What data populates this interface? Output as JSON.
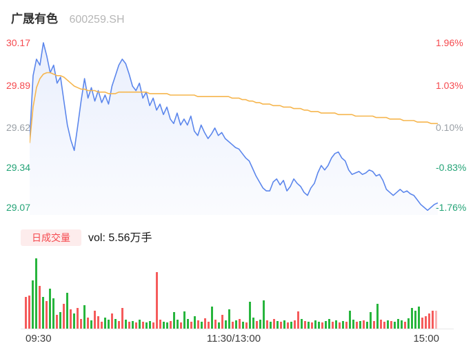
{
  "header": {
    "name": "广晟有色",
    "code": "600259.SH"
  },
  "axes": {
    "left": [
      "30.17",
      "29.89",
      "29.62",
      "29.34",
      "29.07"
    ],
    "right": [
      "1.96%",
      "1.03%",
      "0.10%",
      "-0.83%",
      "-1.76%"
    ],
    "time": [
      "09:30",
      "11:30/13:00",
      "15:00"
    ]
  },
  "volume_legend": {
    "badge": "日成交量",
    "text": "vol: 5.56万手"
  },
  "colors": {
    "up": "#f5494e",
    "down": "#23a376",
    "neutral": "#9aa0a6",
    "price_line": "#5b86ec",
    "avg_line": "#f6b54c",
    "vol_up": "#f55b5b",
    "vol_down": "#27b53d",
    "vol_last_pale": "rgba(245,91,91,0.45)",
    "badge_bg": "#fdecec"
  },
  "chart_data": {
    "type": "line",
    "title": "广晟有色 600259.SH",
    "x_axis": {
      "labels": [
        "09:30",
        "11:30/13:00",
        "15:00"
      ],
      "trading_minutes": 240
    },
    "y_axis": {
      "price_ticks": [
        30.17,
        29.89,
        29.62,
        29.34,
        29.07
      ],
      "pct_ticks": [
        "1.96%",
        "1.03%",
        "0.10%",
        "-0.83%",
        "-1.76%"
      ],
      "range": [
        29.07,
        30.17
      ]
    },
    "prev_close": 29.59,
    "grid": false,
    "legend_position": "none",
    "series": [
      {
        "name": "price",
        "values": [
          29.52,
          29.95,
          30.06,
          30.02,
          30.17,
          30.08,
          29.97,
          30.02,
          29.9,
          29.94,
          29.78,
          29.62,
          29.52,
          29.45,
          29.61,
          29.78,
          29.93,
          29.8,
          29.87,
          29.78,
          29.85,
          29.77,
          29.82,
          29.76,
          29.88,
          29.95,
          30.02,
          30.06,
          30.03,
          29.96,
          29.88,
          29.85,
          29.9,
          29.8,
          29.84,
          29.75,
          29.8,
          29.72,
          29.76,
          29.69,
          29.74,
          29.66,
          29.63,
          29.7,
          29.62,
          29.66,
          29.62,
          29.68,
          29.58,
          29.55,
          29.62,
          29.57,
          29.53,
          29.56,
          29.6,
          29.55,
          29.57,
          29.53,
          29.51,
          29.49,
          29.47,
          29.46,
          29.43,
          29.4,
          29.38,
          29.33,
          29.28,
          29.24,
          29.2,
          29.18,
          29.18,
          29.24,
          29.26,
          29.22,
          29.25,
          29.18,
          29.21,
          29.26,
          29.23,
          29.21,
          29.17,
          29.15,
          29.2,
          29.23,
          29.3,
          29.35,
          29.32,
          29.35,
          29.4,
          29.43,
          29.44,
          29.4,
          29.38,
          29.32,
          29.29,
          29.3,
          29.31,
          29.29,
          29.3,
          29.32,
          29.31,
          29.28,
          29.29,
          29.25,
          29.19,
          29.17,
          29.15,
          29.17,
          29.19,
          29.17,
          29.18,
          29.16,
          29.15,
          29.12,
          29.09,
          29.07,
          29.05,
          29.07,
          29.09,
          29.1
        ]
      },
      {
        "name": "avg_price",
        "values": [
          29.5,
          29.74,
          29.87,
          29.93,
          29.96,
          29.97,
          29.97,
          29.96,
          29.95,
          29.95,
          29.94,
          29.92,
          29.9,
          29.88,
          29.87,
          29.86,
          29.86,
          29.85,
          29.85,
          29.85,
          29.84,
          29.84,
          29.84,
          29.83,
          29.83,
          29.83,
          29.84,
          29.84,
          29.84,
          29.84,
          29.84,
          29.84,
          29.84,
          29.84,
          29.84,
          29.83,
          29.83,
          29.83,
          29.83,
          29.83,
          29.83,
          29.82,
          29.82,
          29.82,
          29.82,
          29.82,
          29.82,
          29.82,
          29.82,
          29.81,
          29.81,
          29.81,
          29.81,
          29.81,
          29.81,
          29.81,
          29.81,
          29.81,
          29.81,
          29.8,
          29.8,
          29.8,
          29.79,
          29.79,
          29.78,
          29.78,
          29.77,
          29.77,
          29.76,
          29.76,
          29.76,
          29.75,
          29.75,
          29.75,
          29.74,
          29.74,
          29.74,
          29.73,
          29.73,
          29.73,
          29.72,
          29.72,
          29.71,
          29.71,
          29.71,
          29.7,
          29.7,
          29.7,
          29.7,
          29.7,
          29.69,
          29.69,
          29.69,
          29.69,
          29.69,
          29.68,
          29.68,
          29.68,
          29.68,
          29.68,
          29.68,
          29.67,
          29.67,
          29.67,
          29.67,
          29.66,
          29.66,
          29.66,
          29.66,
          29.65,
          29.65,
          29.65,
          29.65,
          29.64,
          29.64,
          29.64,
          29.64,
          29.63,
          29.63,
          29.63
        ]
      }
    ],
    "volume": {
      "unit": "万手",
      "total_label": "5.56",
      "values_rel": [
        46,
        48,
        70,
        102,
        62,
        46,
        40,
        58,
        44,
        20,
        24,
        36,
        52,
        28,
        22,
        30,
        14,
        34,
        16,
        12,
        26,
        18,
        10,
        16,
        13,
        22,
        14,
        11,
        30,
        13,
        10,
        11,
        9,
        13,
        10,
        9,
        11,
        9,
        82,
        13,
        10,
        9,
        11,
        24,
        13,
        9,
        25,
        14,
        10,
        18,
        12,
        10,
        15,
        10,
        32,
        13,
        9,
        20,
        12,
        28,
        10,
        12,
        14,
        10,
        9,
        39,
        16,
        11,
        13,
        41,
        12,
        10,
        14,
        11,
        10,
        12,
        9,
        10,
        12,
        25,
        14,
        11,
        10,
        9,
        12,
        10,
        9,
        11,
        14,
        10,
        12,
        9,
        11,
        10,
        26,
        13,
        10,
        11,
        12,
        10,
        24,
        11,
        36,
        13,
        10,
        12,
        11,
        10,
        14,
        12,
        10,
        15,
        30,
        26,
        32,
        16,
        18,
        22,
        26,
        26
      ],
      "dirs": "rrggrgrggrgrgrgrrgrgrrrggrgrrgrgrgrggrrrggrggrggrgrgrrgrgrggrgrgrggrggrgrgrgrgrrgrgrggrggrgrgrggrgrggrgrrgrgggrggggrrrrp"
    }
  }
}
